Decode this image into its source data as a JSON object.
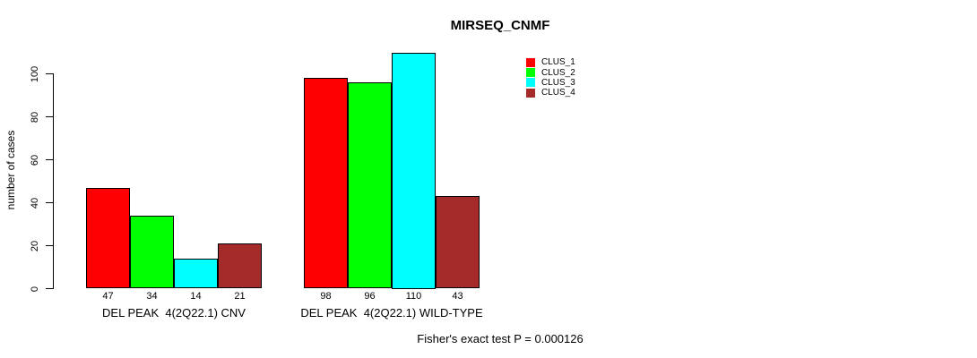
{
  "chart_data": {
    "type": "bar",
    "title": "MIRSEQ_CNMF",
    "ylabel": "number of cases",
    "xlabel": "",
    "ylim": [
      0,
      110
    ],
    "yticks": [
      0,
      20,
      40,
      60,
      80,
      100
    ],
    "grid": false,
    "legend_position": "top-right",
    "bar_border_color": "#000000",
    "categories": [
      "DEL PEAK  4(2Q22.1) CNV",
      "DEL PEAK  4(2Q22.1) WILD-TYPE"
    ],
    "series": [
      {
        "name": "CLUS_1",
        "color": "#ff0000",
        "values": [
          47,
          98
        ]
      },
      {
        "name": "CLUS_2",
        "color": "#00ff00",
        "values": [
          34,
          96
        ]
      },
      {
        "name": "CLUS_3",
        "color": "#00ffff",
        "values": [
          14,
          110
        ]
      },
      {
        "name": "CLUS_4",
        "color": "#a52a2a",
        "values": [
          21,
          43
        ]
      }
    ],
    "value_labels_group1": [
      47,
      34,
      14,
      21
    ],
    "value_labels_group2": [
      98,
      96,
      110,
      43
    ],
    "annotation": "Fisher's exact test P = 0.000126"
  }
}
